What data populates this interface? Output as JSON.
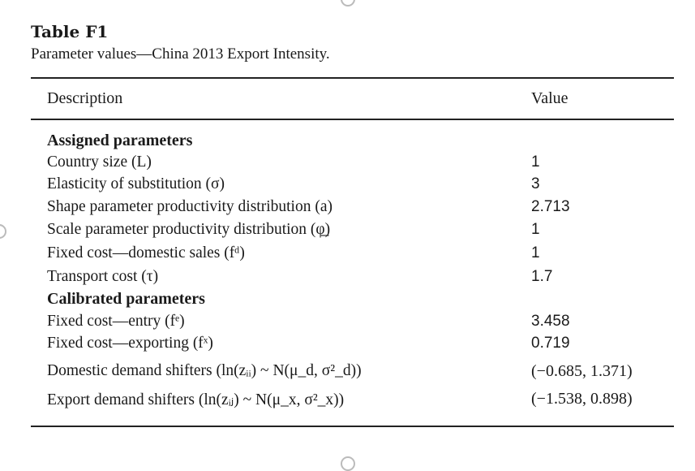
{
  "table": {
    "title": "Table F1",
    "caption": "Parameter values—China 2013 Export Intensity.",
    "columns": {
      "description": "Description",
      "value": "Value"
    },
    "rows": [
      {
        "kind": "section",
        "description": "Assigned parameters",
        "value": ""
      },
      {
        "kind": "param",
        "description": "Country size (L)",
        "value": "1"
      },
      {
        "kind": "param",
        "description": "Elasticity of substitution (σ)",
        "value": "3"
      },
      {
        "kind": "param",
        "description": "Shape parameter productivity distribution (a)",
        "value": "2.713"
      },
      {
        "kind": "param",
        "description": "Scale parameter productivity distribution (φ̲)",
        "value": "1"
      },
      {
        "kind": "param",
        "description": "Fixed cost—domestic sales (fᵈ)",
        "value": "1"
      },
      {
        "kind": "param",
        "description": "Transport cost (τ)",
        "value": "1.7"
      },
      {
        "kind": "section",
        "description": "Calibrated parameters",
        "value": ""
      },
      {
        "kind": "param",
        "description": "Fixed cost—entry (fᵉ)",
        "value": "3.458"
      },
      {
        "kind": "param",
        "description": "Fixed cost—exporting (fˣ)",
        "value": "0.719"
      },
      {
        "kind": "big",
        "description": "Domestic demand shifters (ln(zᵢᵢ) ~ N(μ_d, σ²_d))",
        "value": "(−0.685, 1.371)"
      },
      {
        "kind": "big",
        "description": "Export demand shifters (ln(zᵢⱼ) ~ N(μ_x, σ²_x))",
        "value": "(−1.538, 0.898)"
      }
    ]
  }
}
